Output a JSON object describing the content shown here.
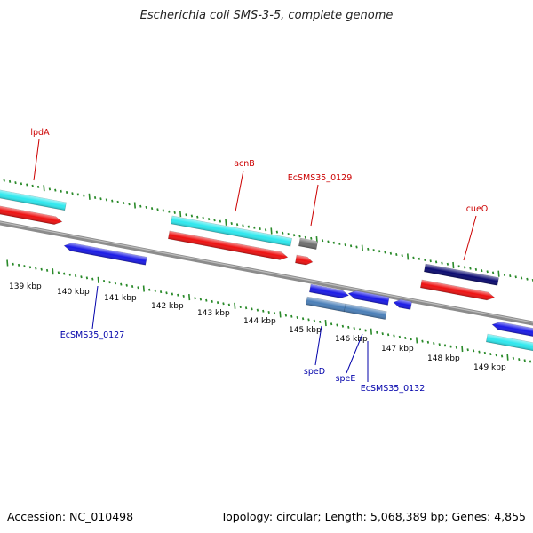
{
  "title": "Escherichia coli SMS-3-5, complete genome",
  "footer": {
    "accession": "Accession: NC_010498",
    "summary": "Topology: circular; Length: 5,068,389 bp; Genes: 4,855"
  },
  "colors": {
    "backbone": "#8c8c8c",
    "tick": "#2a8a2a",
    "top_label": "#cc0000",
    "bottom_label": "#0000aa",
    "cyan": "#2ee8ee",
    "red": "#ee1111",
    "blue": "#1a1ae6",
    "navy": "#0a0a70",
    "steel": "#4a7fb8",
    "gray": "#6e6e6e"
  },
  "scale_labels": [
    "139 kbp",
    "140 kbp",
    "141 kbp",
    "142 kbp",
    "143 kbp",
    "144 kbp",
    "145 kbp",
    "146 kbp",
    "147 kbp",
    "148 kbp",
    "149 kbp"
  ],
  "gene_labels": {
    "lpdA": "lpdA",
    "acnB": "acnB",
    "EcSMS35_0129": "EcSMS35_0129",
    "cueO": "cueO",
    "EcSMS35_0127": "EcSMS35_0127",
    "speD": "speD",
    "speE": "speE",
    "EcSMS35_0132": "EcSMS35_0132"
  }
}
